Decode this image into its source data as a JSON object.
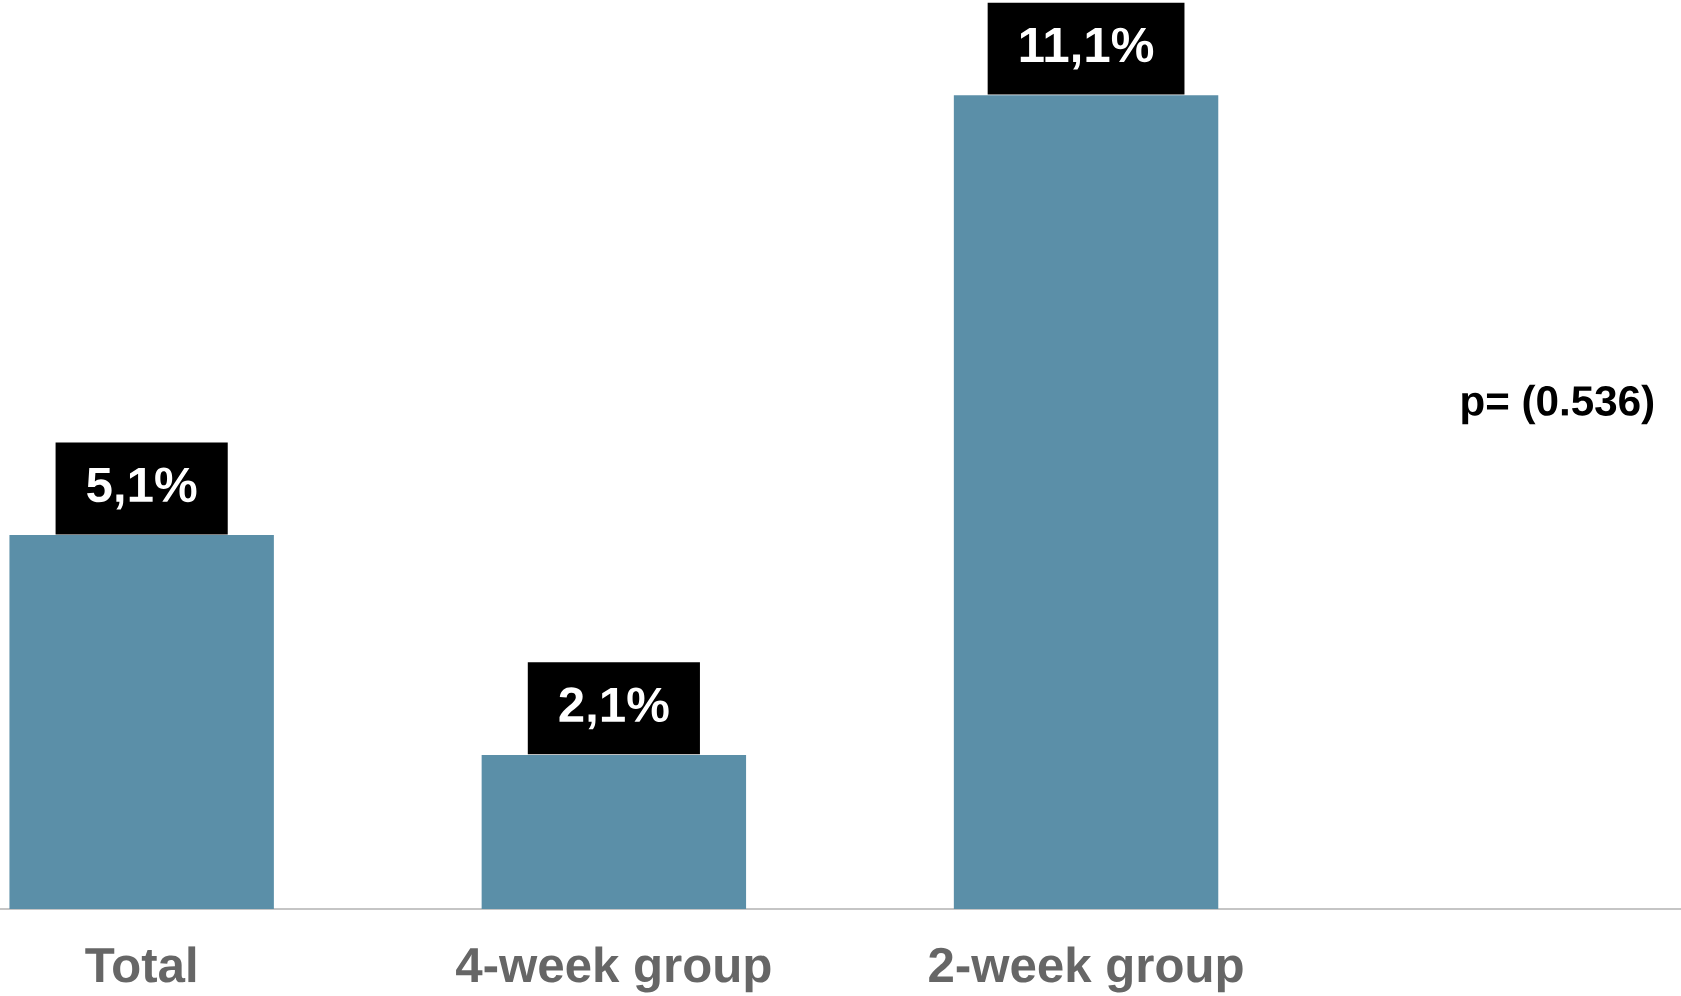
{
  "chart_data": {
    "type": "bar",
    "categories": [
      "Total",
      "4-week group",
      "2-week group"
    ],
    "values": [
      5.1,
      2.1,
      11.1
    ],
    "value_labels": [
      "5,1%",
      "2,1%",
      "11,1%"
    ],
    "color": "#5b8fa8",
    "tick_labels": "x",
    "annotations": [
      "p= (0.536)"
    ]
  }
}
